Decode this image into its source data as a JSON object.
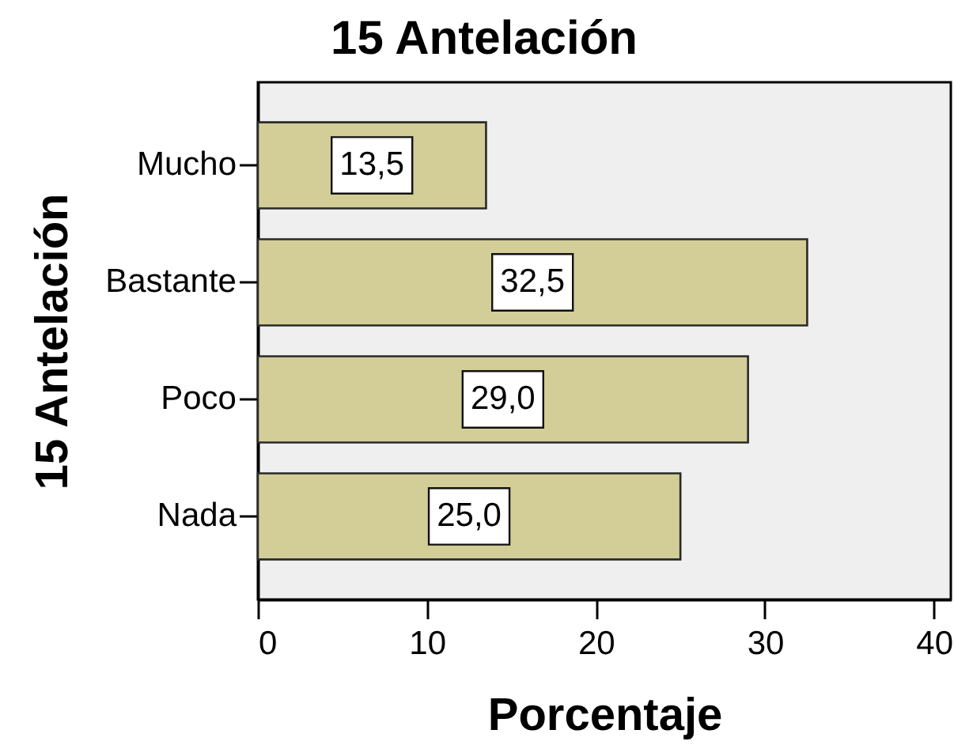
{
  "chart_data": {
    "type": "bar",
    "orientation": "horizontal",
    "title": "15 Antelación",
    "xlabel": "Porcentaje",
    "ylabel": "15 Antelación",
    "categories": [
      "Mucho",
      "Bastante",
      "Poco",
      "Nada"
    ],
    "values": [
      13.5,
      32.5,
      29.0,
      25.0
    ],
    "value_labels": [
      "13,5",
      "32,5",
      "29,0",
      "25,0"
    ],
    "color": "#d3ce97",
    "xlim": [
      0,
      41
    ],
    "xticks": [
      0,
      10,
      20,
      30,
      40
    ]
  }
}
